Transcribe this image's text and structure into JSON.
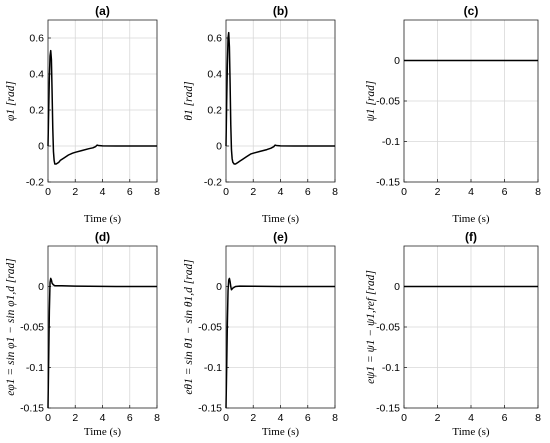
{
  "chart_data": [
    {
      "type": "line",
      "title": "(a)",
      "xlabel": "Time (s)",
      "ylabel": "φ1 [rad]",
      "xlim": [
        0,
        8
      ],
      "ylim": [
        -0.2,
        0.7
      ],
      "xticks": [
        "0",
        "2",
        "4",
        "6",
        "8"
      ],
      "yticks": [
        "-0.2",
        "0",
        "0.2",
        "0.4",
        "0.6"
      ],
      "grid": true,
      "x": [
        0,
        0.05,
        0.1,
        0.15,
        0.2,
        0.25,
        0.3,
        0.35,
        0.4,
        0.45,
        0.5,
        0.6,
        0.7,
        0.8,
        0.9,
        1.0,
        1.2,
        1.5,
        1.8,
        2.0,
        2.5,
        3.0,
        3.3,
        3.5,
        3.6,
        3.7,
        4.0,
        5.0,
        6.0,
        7.0,
        8.0
      ],
      "y": [
        0,
        0.2,
        0.38,
        0.5,
        0.53,
        0.48,
        0.3,
        0.1,
        -0.03,
        -0.08,
        -0.1,
        -0.1,
        -0.095,
        -0.09,
        -0.08,
        -0.075,
        -0.065,
        -0.05,
        -0.04,
        -0.035,
        -0.025,
        -0.015,
        -0.01,
        -0.003,
        0.005,
        0.003,
        0.001,
        0,
        0,
        0,
        0
      ]
    },
    {
      "type": "line",
      "title": "(b)",
      "xlabel": "Time (s)",
      "ylabel": "θ1 [rad]",
      "xlim": [
        0,
        8
      ],
      "ylim": [
        -0.2,
        0.7
      ],
      "xticks": [
        "0",
        "2",
        "4",
        "6",
        "8"
      ],
      "yticks": [
        "-0.2",
        "0",
        "0.2",
        "0.4",
        "0.6"
      ],
      "grid": true,
      "x": [
        0,
        0.05,
        0.1,
        0.15,
        0.2,
        0.25,
        0.3,
        0.35,
        0.4,
        0.45,
        0.5,
        0.6,
        0.7,
        0.8,
        0.9,
        1.0,
        1.2,
        1.5,
        1.8,
        2.0,
        2.5,
        3.0,
        3.3,
        3.5,
        3.6,
        3.7,
        4.0,
        5.0,
        6.0,
        7.0,
        8.0
      ],
      "y": [
        0,
        0.25,
        0.45,
        0.6,
        0.63,
        0.55,
        0.35,
        0.12,
        -0.02,
        -0.07,
        -0.09,
        -0.1,
        -0.1,
        -0.095,
        -0.09,
        -0.085,
        -0.075,
        -0.06,
        -0.045,
        -0.04,
        -0.03,
        -0.02,
        -0.012,
        -0.004,
        0.005,
        0.003,
        0.001,
        0,
        0,
        0,
        0
      ]
    },
    {
      "type": "line",
      "title": "(c)",
      "xlabel": "Time (s)",
      "ylabel": "ψ1 [rad]",
      "xlim": [
        0,
        8
      ],
      "ylim": [
        -0.15,
        0.05
      ],
      "xticks": [
        "0",
        "2",
        "4",
        "6",
        "8"
      ],
      "yticks": [
        "-0.15",
        "-0.1",
        "-0.05",
        "0"
      ],
      "grid": true,
      "x": [
        0,
        8
      ],
      "y": [
        0,
        0
      ]
    },
    {
      "type": "line",
      "title": "(d)",
      "xlabel": "Time (s)",
      "ylabel": "eφ1 = sin φ1 − sin φ1,d [rad]",
      "xlim": [
        0,
        8
      ],
      "ylim": [
        -0.15,
        0.05
      ],
      "xticks": [
        "0",
        "2",
        "4",
        "6",
        "8"
      ],
      "yticks": [
        "-0.15",
        "-0.1",
        "-0.05",
        "0"
      ],
      "grid": true,
      "x": [
        0,
        0.05,
        0.1,
        0.15,
        0.2,
        0.25,
        0.3,
        0.4,
        0.5,
        0.7,
        1.0,
        2.0,
        3.0,
        4.0,
        5.0,
        6.0,
        7.0,
        8.0
      ],
      "y": [
        -0.15,
        -0.09,
        -0.03,
        0.005,
        0.01,
        0.008,
        0.004,
        0.002,
        0.001,
        0.001,
        0.001,
        0.0005,
        0.0003,
        0.0002,
        0,
        0,
        0,
        0
      ]
    },
    {
      "type": "line",
      "title": "(e)",
      "xlabel": "Time (s)",
      "ylabel": "eθ1 = sin θ1 − sin θ1,d [rad]",
      "xlim": [
        0,
        8
      ],
      "ylim": [
        -0.15,
        0.05
      ],
      "xticks": [
        "0",
        "2",
        "4",
        "6",
        "8"
      ],
      "yticks": [
        "-0.15",
        "-0.1",
        "-0.05",
        "0"
      ],
      "grid": true,
      "x": [
        0,
        0.05,
        0.1,
        0.15,
        0.2,
        0.25,
        0.3,
        0.35,
        0.4,
        0.5,
        0.7,
        1.0,
        2.0,
        3.0,
        4.0,
        5.0,
        6.0,
        7.0,
        8.0
      ],
      "y": [
        -0.15,
        -0.1,
        -0.045,
        -0.005,
        0.008,
        0.01,
        0.006,
        0.0,
        -0.004,
        -0.002,
        0.0,
        0.0005,
        0.0003,
        0.0002,
        0,
        0,
        0,
        0,
        0
      ]
    },
    {
      "type": "line",
      "title": "(f)",
      "xlabel": "Time (s)",
      "ylabel": "eψ1 = ψ1 − ψ1,ref [rad]",
      "xlim": [
        0,
        8
      ],
      "ylim": [
        -0.15,
        0.05
      ],
      "xticks": [
        "0",
        "2",
        "4",
        "6",
        "8"
      ],
      "yticks": [
        "-0.15",
        "-0.1",
        "-0.05",
        "0"
      ],
      "grid": true,
      "x": [
        0,
        8
      ],
      "y": [
        0,
        0
      ]
    }
  ]
}
